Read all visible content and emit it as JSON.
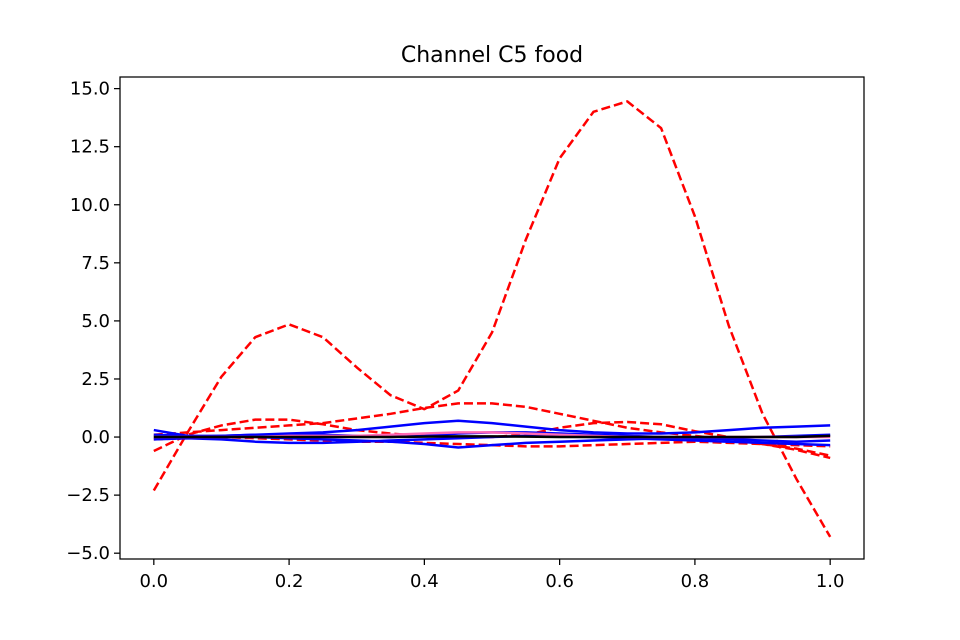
{
  "chart_data": {
    "type": "line",
    "title": "Channel C5 food",
    "xlabel": "",
    "ylabel": "",
    "xlim": [
      -0.05,
      1.05
    ],
    "ylim": [
      -5.25,
      15.5
    ],
    "xticks": [
      0.0,
      0.2,
      0.4,
      0.6,
      0.8,
      1.0
    ],
    "xtick_labels": [
      "0.0",
      "0.2",
      "0.4",
      "0.6",
      "0.8",
      "1.0"
    ],
    "yticks": [
      -5.0,
      -2.5,
      0.0,
      2.5,
      5.0,
      7.5,
      10.0,
      12.5,
      15.0
    ],
    "ytick_labels": [
      "−5.0",
      "−2.5",
      "0.0",
      "2.5",
      "5.0",
      "7.5",
      "10.0",
      "12.5",
      "15.0"
    ],
    "grid": false,
    "legend": "none",
    "colors": {
      "dashed": "#ff0000",
      "solid": "#0000ff",
      "mean": "#000000"
    },
    "series": [
      {
        "style": "dashed",
        "color": "#ff0000",
        "x": [
          0.0,
          0.05,
          0.1,
          0.15,
          0.2,
          0.25,
          0.3,
          0.35,
          0.4,
          0.45,
          0.5,
          0.55,
          0.6,
          0.65,
          0.7,
          0.75,
          0.8,
          0.85,
          0.9,
          0.95,
          1.0
        ],
        "y": [
          -2.3,
          0.2,
          2.6,
          4.3,
          4.85,
          4.3,
          3.0,
          1.8,
          1.2,
          2.0,
          4.5,
          8.5,
          12.0,
          14.0,
          14.45,
          13.3,
          9.5,
          4.8,
          1.0,
          -1.8,
          -4.3
        ]
      },
      {
        "style": "dashed",
        "color": "#ff0000",
        "x": [
          0.0,
          0.05,
          0.1,
          0.15,
          0.2,
          0.25,
          0.3,
          0.35,
          0.4,
          0.45,
          0.5,
          0.55,
          0.6,
          0.65,
          0.7,
          0.75,
          0.8,
          0.85,
          0.9,
          0.95,
          1.0
        ],
        "y": [
          -0.6,
          0.1,
          0.5,
          0.75,
          0.75,
          0.55,
          0.3,
          0.15,
          0.05,
          0.0,
          0.0,
          0.1,
          0.4,
          0.6,
          0.65,
          0.55,
          0.25,
          0.0,
          -0.3,
          -0.5,
          -0.8
        ]
      },
      {
        "style": "dashed",
        "color": "#ff0000",
        "x": [
          0.0,
          0.05,
          0.1,
          0.15,
          0.2,
          0.25,
          0.3,
          0.35,
          0.4,
          0.45,
          0.5,
          0.55,
          0.6,
          0.65,
          0.7,
          0.75,
          0.8,
          0.85,
          0.9,
          0.95,
          1.0
        ],
        "y": [
          0.1,
          0.2,
          0.3,
          0.4,
          0.5,
          0.6,
          0.8,
          1.0,
          1.25,
          1.45,
          1.45,
          1.3,
          1.0,
          0.7,
          0.4,
          0.2,
          0.05,
          -0.1,
          -0.3,
          -0.55,
          -0.9
        ]
      },
      {
        "style": "dashed",
        "color": "#ff0000",
        "x": [
          0.0,
          0.05,
          0.1,
          0.15,
          0.2,
          0.25,
          0.3,
          0.35,
          0.4,
          0.45,
          0.5,
          0.55,
          0.6,
          0.65,
          0.7,
          0.75,
          0.8,
          0.85,
          0.9,
          0.95,
          1.0
        ],
        "y": [
          -0.1,
          -0.05,
          0.0,
          -0.05,
          -0.1,
          -0.15,
          -0.2,
          -0.2,
          -0.25,
          -0.3,
          -0.35,
          -0.4,
          -0.4,
          -0.35,
          -0.3,
          -0.25,
          -0.2,
          -0.25,
          -0.3,
          -0.35,
          -0.4
        ]
      },
      {
        "style": "solid",
        "color": "#0000ff",
        "x": [
          0.0,
          0.05,
          0.1,
          0.15,
          0.2,
          0.25,
          0.3,
          0.35,
          0.4,
          0.45,
          0.5,
          0.55,
          0.6,
          0.65,
          0.7,
          0.75,
          0.8,
          0.85,
          0.9,
          0.95,
          1.0
        ],
        "y": [
          0.3,
          0.05,
          0.05,
          0.1,
          0.15,
          0.2,
          0.3,
          0.45,
          0.6,
          0.7,
          0.6,
          0.45,
          0.3,
          0.2,
          0.15,
          0.15,
          0.2,
          0.3,
          0.4,
          0.45,
          0.5
        ]
      },
      {
        "style": "solid",
        "color": "#0000ff",
        "x": [
          0.0,
          0.05,
          0.1,
          0.15,
          0.2,
          0.25,
          0.3,
          0.35,
          0.4,
          0.45,
          0.5,
          0.55,
          0.6,
          0.65,
          0.7,
          0.75,
          0.8,
          0.85,
          0.9,
          0.95,
          1.0
        ],
        "y": [
          -0.1,
          -0.05,
          -0.1,
          -0.2,
          -0.25,
          -0.25,
          -0.2,
          -0.15,
          -0.1,
          -0.05,
          0.0,
          0.05,
          0.05,
          0.0,
          -0.05,
          -0.1,
          -0.15,
          -0.2,
          -0.25,
          -0.3,
          -0.35
        ]
      },
      {
        "style": "solid",
        "color": "#0000ff",
        "x": [
          0.0,
          0.05,
          0.1,
          0.15,
          0.2,
          0.25,
          0.3,
          0.35,
          0.4,
          0.45,
          0.5,
          0.55,
          0.6,
          0.65,
          0.7,
          0.75,
          0.8,
          0.85,
          0.9,
          0.95,
          1.0
        ],
        "y": [
          0.1,
          0.05,
          0.0,
          0.0,
          -0.05,
          -0.1,
          -0.15,
          -0.2,
          -0.3,
          -0.45,
          -0.35,
          -0.25,
          -0.2,
          -0.15,
          -0.1,
          -0.05,
          -0.05,
          -0.1,
          -0.15,
          -0.2,
          -0.15
        ]
      },
      {
        "style": "solid",
        "color": "#0000ff",
        "x": [
          0.0,
          0.05,
          0.1,
          0.15,
          0.2,
          0.25,
          0.3,
          0.35,
          0.4,
          0.45,
          0.5,
          0.55,
          0.6,
          0.65,
          0.7,
          0.75,
          0.8,
          0.85,
          0.9,
          0.95,
          1.0
        ],
        "y": [
          0.0,
          0.0,
          0.05,
          0.1,
          0.1,
          0.1,
          0.05,
          0.0,
          0.05,
          0.15,
          0.2,
          0.2,
          0.15,
          0.1,
          0.05,
          0.0,
          -0.05,
          -0.05,
          0.0,
          0.05,
          0.1
        ]
      },
      {
        "style": "solid",
        "color": "#ff69b4",
        "x": [
          0.0,
          0.05,
          0.1,
          0.15,
          0.2,
          0.25,
          0.3,
          0.35,
          0.4,
          0.45,
          0.5,
          0.55,
          0.6,
          0.65,
          0.7,
          0.75,
          0.8,
          0.85,
          0.9,
          0.95,
          1.0
        ],
        "y": [
          0.0,
          0.0,
          0.0,
          0.0,
          0.05,
          0.05,
          0.05,
          0.1,
          0.15,
          0.2,
          0.2,
          0.15,
          0.1,
          0.05,
          0.0,
          0.0,
          0.0,
          0.0,
          0.0,
          0.0,
          0.0
        ]
      },
      {
        "style": "solid",
        "color": "#000000",
        "x": [
          0.0,
          0.05,
          0.1,
          0.15,
          0.2,
          0.25,
          0.3,
          0.35,
          0.4,
          0.45,
          0.5,
          0.55,
          0.6,
          0.65,
          0.7,
          0.75,
          0.8,
          0.85,
          0.9,
          0.95,
          1.0
        ],
        "y": [
          0.0,
          0.0,
          0.0,
          0.0,
          0.0,
          0.0,
          0.0,
          0.0,
          0.02,
          0.03,
          0.03,
          0.02,
          0.0,
          0.0,
          0.0,
          0.0,
          0.0,
          0.0,
          0.0,
          0.0,
          0.05
        ]
      }
    ]
  }
}
